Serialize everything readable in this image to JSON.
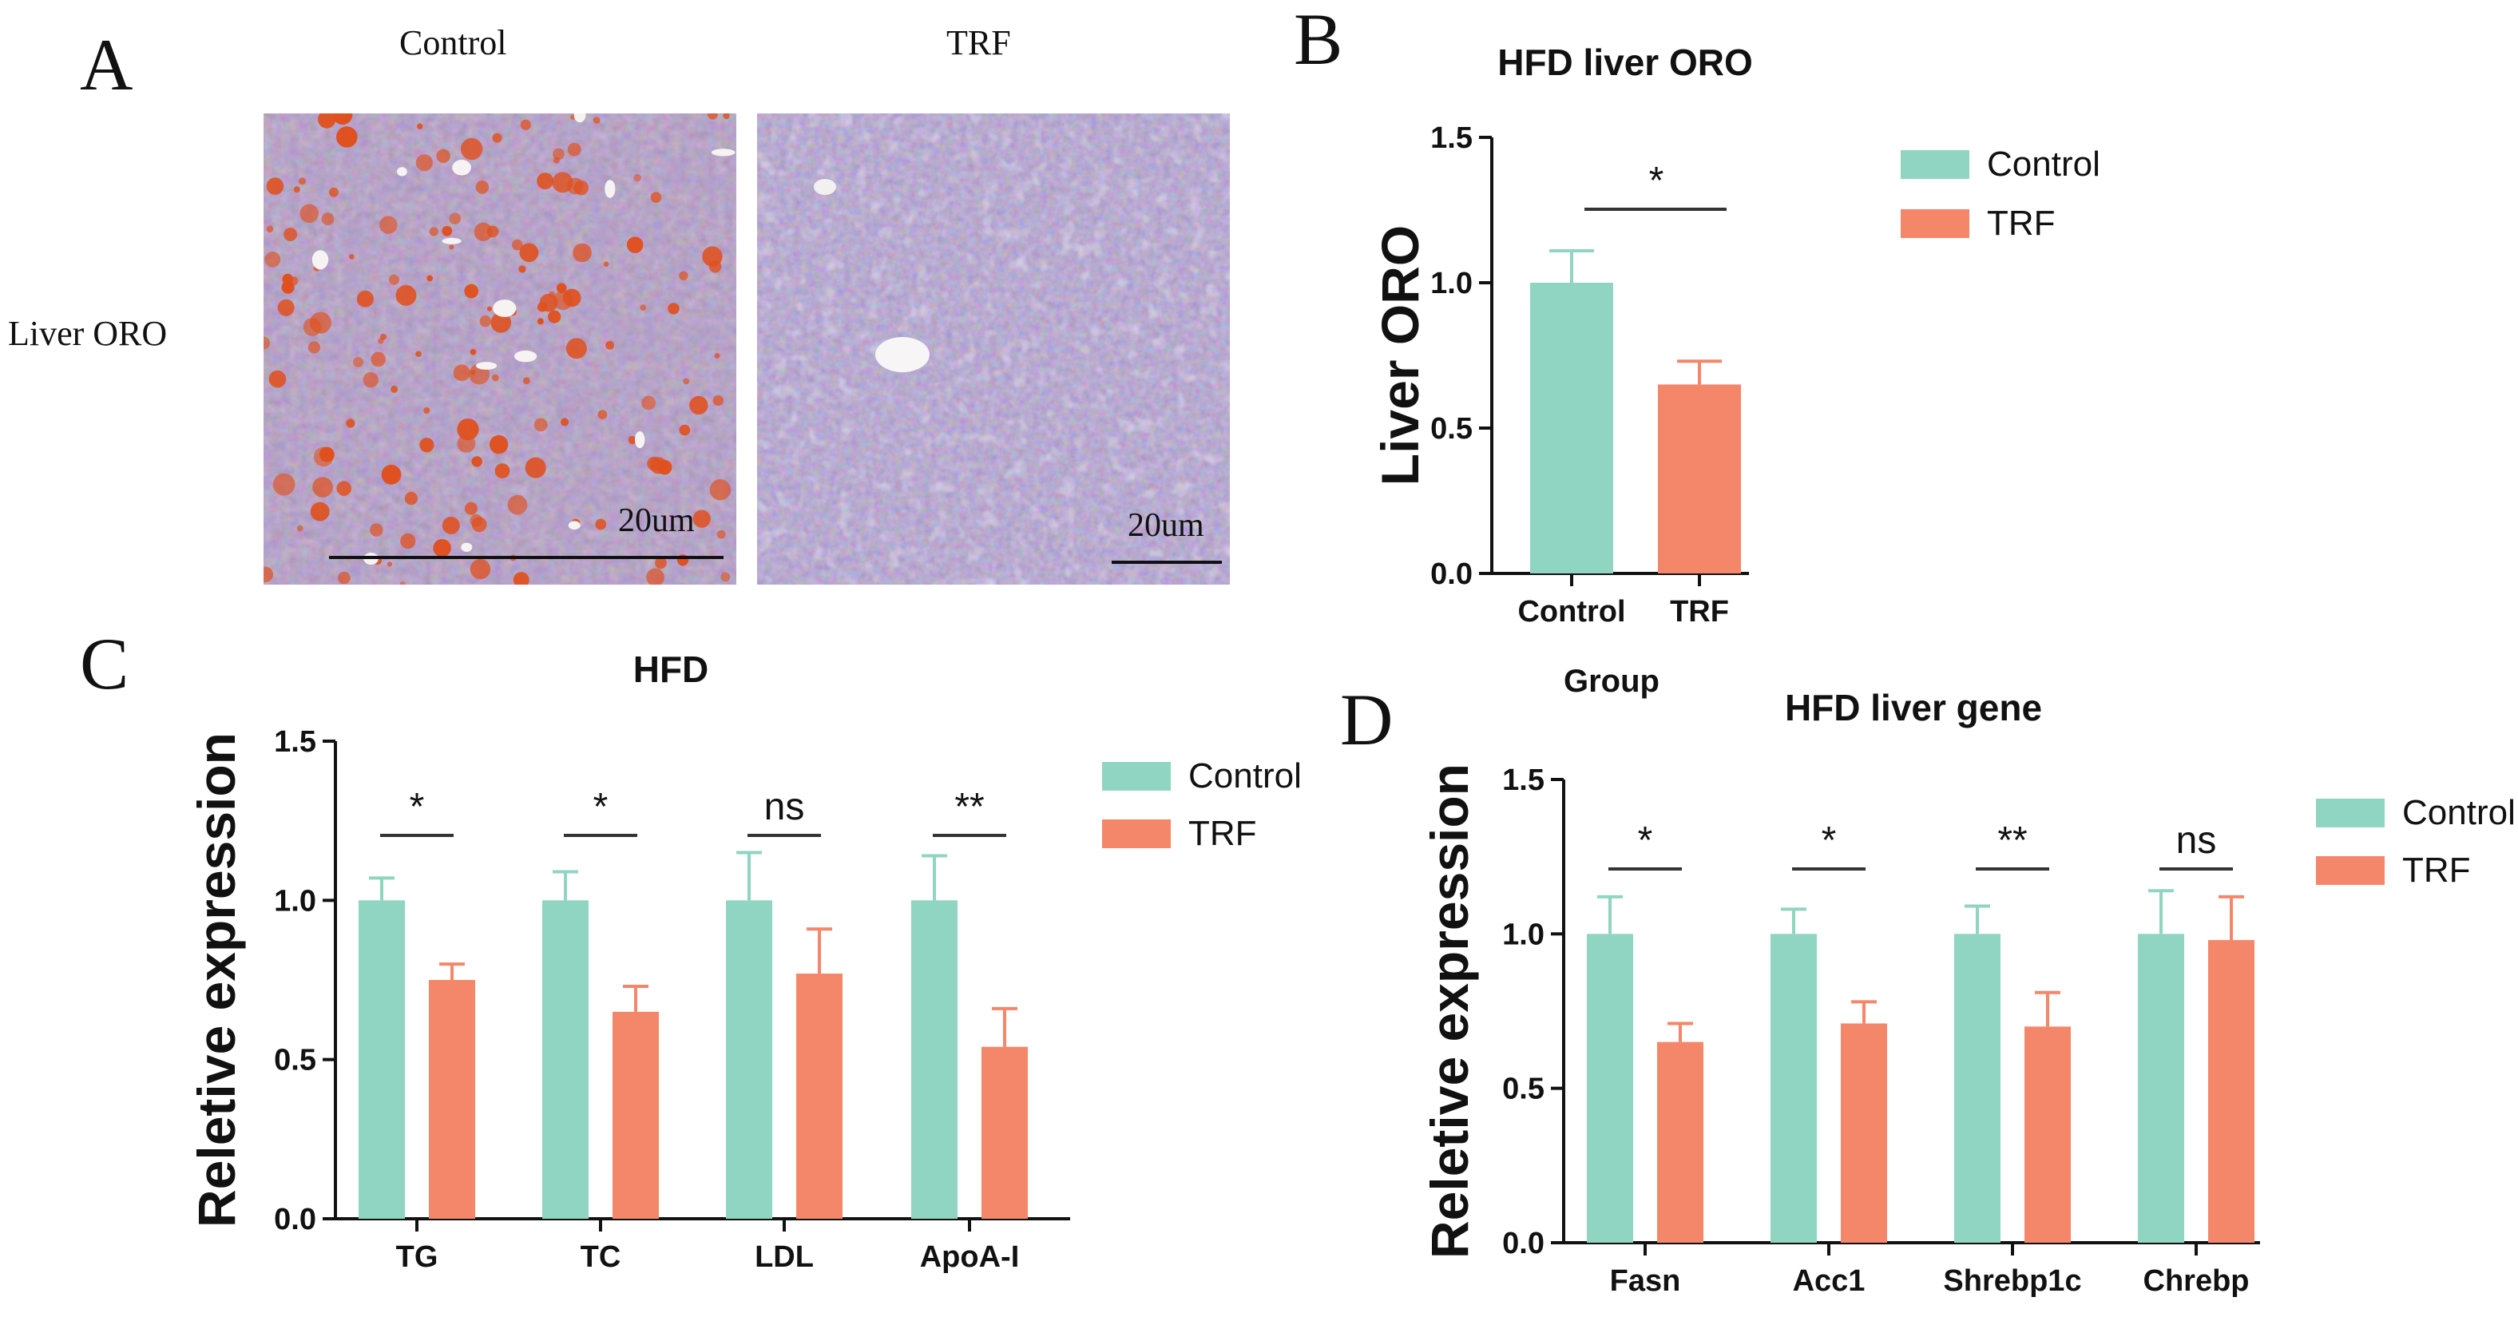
{
  "figure": {
    "colors": {
      "control": "#8fd5c1",
      "trf": "#f4866a",
      "axis": "#111111"
    }
  },
  "panel_a": {
    "letter": "A",
    "col_headers": [
      "Control",
      "TRF"
    ],
    "row_header": "Liver ORO",
    "scale_bars": [
      "20um",
      "20um"
    ],
    "image_icons": [
      "oro-stained-liver-section-icon",
      "oro-stained-liver-section-icon"
    ]
  },
  "panel_b": {
    "letter": "B"
  },
  "panel_c": {
    "letter": "C"
  },
  "panel_d": {
    "letter": "D"
  },
  "chart_data": [
    {
      "id": "B",
      "type": "bar",
      "title": "HFD liver ORO",
      "xlabel": "Group",
      "ylabel": "Liver ORO",
      "ylim": [
        0,
        1.5
      ],
      "yticks": [
        "0.0",
        "0.5",
        "1.0",
        "1.5"
      ],
      "categories": [
        "Control",
        "TRF"
      ],
      "series": [
        {
          "name": "Control",
          "values": [
            1.0,
            null
          ],
          "errors": [
            0.11,
            null
          ],
          "color": "#8fd5c1"
        },
        {
          "name": "TRF",
          "values": [
            null,
            0.65
          ],
          "errors": [
            null,
            0.08
          ],
          "color": "#f4866a"
        }
      ],
      "significance": [
        "*"
      ],
      "legend": [
        "Control",
        "TRF"
      ],
      "legend_position": "right",
      "grid": false
    },
    {
      "id": "C",
      "type": "bar",
      "title": "HFD",
      "xlabel": "",
      "ylabel": "Reletive expression",
      "ylim": [
        0,
        1.5
      ],
      "yticks": [
        "0.0",
        "0.5",
        "1.0",
        "1.5"
      ],
      "categories": [
        "TG",
        "TC",
        "LDL",
        "ApoA-I"
      ],
      "series": [
        {
          "name": "Control",
          "values": [
            1.0,
            1.0,
            1.0,
            1.0
          ],
          "errors": [
            0.07,
            0.09,
            0.15,
            0.14
          ],
          "color": "#8fd5c1"
        },
        {
          "name": "TRF",
          "values": [
            0.75,
            0.65,
            0.77,
            0.54
          ],
          "errors": [
            0.05,
            0.08,
            0.14,
            0.12
          ],
          "color": "#f4866a"
        }
      ],
      "significance": [
        "*",
        "*",
        "ns",
        "**"
      ],
      "legend": [
        "Control",
        "TRF"
      ],
      "legend_position": "right",
      "grid": false
    },
    {
      "id": "D",
      "type": "bar",
      "title": "HFD liver gene",
      "xlabel": "",
      "ylabel": "Reletive expression",
      "ylim": [
        0,
        1.5
      ],
      "yticks": [
        "0.0",
        "0.5",
        "1.0",
        "1.5"
      ],
      "categories": [
        "Fasn",
        "Acc1",
        "Shrebp1c",
        "Chrebp"
      ],
      "series": [
        {
          "name": "Control",
          "values": [
            1.0,
            1.0,
            1.0,
            1.0
          ],
          "errors": [
            0.12,
            0.08,
            0.09,
            0.14
          ],
          "color": "#8fd5c1"
        },
        {
          "name": "TRF",
          "values": [
            0.65,
            0.71,
            0.7,
            0.98
          ],
          "errors": [
            0.06,
            0.07,
            0.11,
            0.14
          ],
          "color": "#f4866a"
        }
      ],
      "significance": [
        "*",
        "*",
        "**",
        "ns"
      ],
      "legend": [
        "Control",
        "TRF"
      ],
      "legend_position": "right",
      "grid": false
    }
  ]
}
